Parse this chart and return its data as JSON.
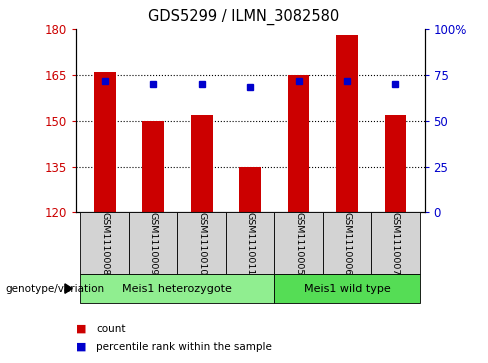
{
  "title": "GDS5299 / ILMN_3082580",
  "samples": [
    "GSM1110008",
    "GSM1110009",
    "GSM1110010",
    "GSM1110011",
    "GSM1110005",
    "GSM1110006",
    "GSM1110007"
  ],
  "bar_heights": [
    166,
    150,
    152,
    135,
    165,
    178,
    152
  ],
  "bar_base": 120,
  "percentile_values": [
    163,
    162,
    162,
    161,
    163,
    163,
    162
  ],
  "ylim_left": [
    120,
    180
  ],
  "ylim_right": [
    0,
    100
  ],
  "yticks_left": [
    120,
    135,
    150,
    165,
    180
  ],
  "yticks_right": [
    0,
    25,
    50,
    75,
    100
  ],
  "bar_color": "#cc0000",
  "dot_color": "#0000cc",
  "group1_label": "Meis1 heterozygote",
  "group2_label": "Meis1 wild type",
  "group1_indices": [
    0,
    1,
    2,
    3
  ],
  "group2_indices": [
    4,
    5,
    6
  ],
  "group1_color": "#90ee90",
  "group2_color": "#55dd55",
  "tick_label_area_color": "#d3d3d3",
  "genotype_label": "genotype/variation",
  "legend_count_label": "count",
  "legend_percentile_label": "percentile rank within the sample",
  "right_yaxis_color": "#0000cc",
  "left_yaxis_color": "#cc0000",
  "grid_color": "#000000",
  "grid_ticks": [
    135,
    150,
    165
  ]
}
